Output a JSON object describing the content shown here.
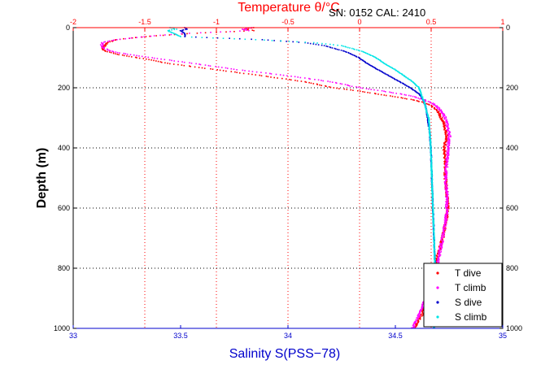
{
  "chart_data": {
    "type": "scatter",
    "annotation": "SN: 0152  CAL: 2410",
    "y_axis": {
      "label": "Depth (m)",
      "range": [
        1000,
        0
      ],
      "reversed": true,
      "ticks": [
        0,
        200,
        400,
        600,
        800,
        1000
      ],
      "tick_labels": [
        "0",
        "200",
        "400",
        "600",
        "800",
        "1000"
      ]
    },
    "top_axis": {
      "label": "Temperature θ/°C",
      "range": [
        -2,
        1
      ],
      "ticks": [
        -2,
        -1.5,
        -1,
        -0.5,
        0,
        0.5,
        1
      ],
      "tick_labels": [
        "-2",
        "-1.5",
        "-1",
        "-0.5",
        "0",
        "0.5",
        "1"
      ],
      "color": "#ff0000"
    },
    "bottom_axis": {
      "label": "Salinity S(PSS−78)",
      "range": [
        33,
        35
      ],
      "ticks": [
        33,
        33.5,
        34,
        34.5,
        35
      ],
      "tick_labels": [
        "33",
        "33.5",
        "34",
        "34.5",
        "35"
      ],
      "color": "#0000cc"
    },
    "grid": {
      "vertical_temperature": true,
      "horizontal_depth": true,
      "style": "dotted"
    },
    "legend": {
      "placement": "bottom-right"
    },
    "series": [
      {
        "name": "T dive",
        "axis": "temperature",
        "color": "#ff0000",
        "depth": [
          0,
          5,
          10,
          20,
          30,
          40,
          50,
          60,
          70,
          80,
          90,
          100,
          120,
          140,
          160,
          180,
          200,
          210,
          220,
          230,
          240,
          250,
          260,
          280,
          300,
          320,
          340,
          360,
          380,
          400,
          450,
          500,
          550,
          600,
          650,
          700,
          750,
          800,
          850,
          900,
          950,
          1000
        ],
        "values": [
          -0.74,
          -0.8,
          -0.74,
          -1.2,
          -1.5,
          -1.7,
          -1.76,
          -1.78,
          -1.8,
          -1.76,
          -1.68,
          -1.55,
          -1.32,
          -1.0,
          -0.68,
          -0.38,
          -0.18,
          -0.02,
          0.12,
          0.25,
          0.37,
          0.45,
          0.5,
          0.55,
          0.57,
          0.59,
          0.6,
          0.61,
          0.6,
          0.59,
          0.6,
          0.6,
          0.61,
          0.62,
          0.6,
          0.58,
          0.55,
          0.52,
          0.5,
          0.47,
          0.44,
          0.38
        ]
      },
      {
        "name": "T climb",
        "axis": "temperature",
        "color": "#ff00ff",
        "depth": [
          0,
          5,
          10,
          20,
          30,
          40,
          50,
          60,
          70,
          80,
          90,
          100,
          120,
          140,
          160,
          180,
          200,
          210,
          220,
          230,
          240,
          250,
          260,
          280,
          300,
          320,
          340,
          360,
          380,
          400,
          450,
          500,
          550,
          600,
          650,
          700,
          750,
          800,
          850,
          900,
          950,
          1000
        ],
        "values": [
          -0.75,
          -0.82,
          -0.77,
          -1.25,
          -1.5,
          -1.7,
          -1.8,
          -1.8,
          -1.78,
          -1.72,
          -1.6,
          -1.45,
          -1.15,
          -0.85,
          -0.5,
          -0.2,
          0.0,
          0.15,
          0.28,
          0.38,
          0.45,
          0.5,
          0.54,
          0.57,
          0.6,
          0.61,
          0.62,
          0.63,
          0.62,
          0.62,
          0.61,
          0.6,
          0.61,
          0.61,
          0.6,
          0.58,
          0.56,
          0.54,
          0.5,
          0.46,
          0.42,
          0.37
        ]
      },
      {
        "name": "S dive",
        "axis": "salinity",
        "color": "#0000cc",
        "depth": [
          0,
          5,
          10,
          20,
          30,
          40,
          50,
          60,
          80,
          100,
          120,
          140,
          160,
          180,
          200,
          220,
          240,
          260,
          280,
          300,
          350,
          400,
          500,
          600,
          700,
          800,
          900,
          1000
        ],
        "values": [
          33.52,
          33.53,
          33.5,
          33.52,
          33.52,
          33.88,
          34.08,
          34.17,
          34.27,
          34.33,
          34.37,
          34.42,
          34.47,
          34.52,
          34.57,
          34.61,
          34.63,
          34.64,
          34.645,
          34.65,
          34.66,
          34.665,
          34.67,
          34.675,
          34.68,
          34.685,
          34.68,
          34.68
        ]
      },
      {
        "name": "S climb",
        "axis": "salinity",
        "color": "#00e5e5",
        "depth": [
          0,
          5,
          10,
          20,
          30,
          40,
          50,
          60,
          80,
          100,
          120,
          140,
          160,
          180,
          200,
          220,
          240,
          260,
          280,
          300,
          350,
          400,
          500,
          600,
          700,
          800,
          900,
          1000
        ],
        "values": [
          33.45,
          33.48,
          33.44,
          33.47,
          33.5,
          33.85,
          34.12,
          34.25,
          34.35,
          34.41,
          34.45,
          34.5,
          34.54,
          34.58,
          34.61,
          34.62,
          34.63,
          34.64,
          34.645,
          34.655,
          34.66,
          34.665,
          34.67,
          34.675,
          34.68,
          34.685,
          34.68,
          34.68
        ]
      }
    ]
  }
}
